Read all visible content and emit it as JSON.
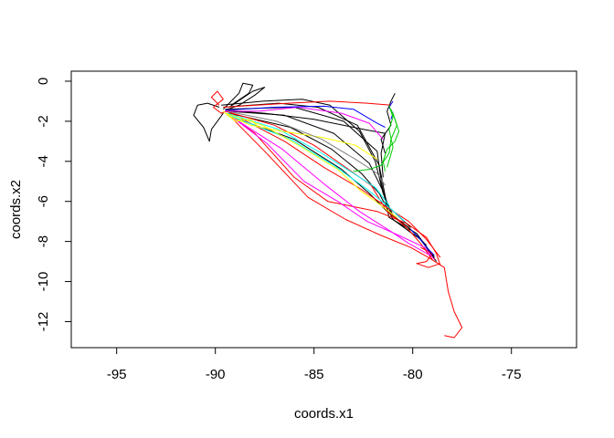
{
  "chart_data": {
    "type": "line",
    "title": "",
    "xlabel": "coords.x1",
    "ylabel": "coords.x2",
    "xlim": [
      -97.3,
      -71.7
    ],
    "ylim": [
      -13.3,
      0.5
    ],
    "x_ticks": [
      -95,
      -90,
      -85,
      -80,
      -75
    ],
    "y_ticks": [
      0,
      -2,
      -4,
      -6,
      -8,
      -10,
      -12
    ],
    "x_tick_labels": [
      "-95",
      "-90",
      "-85",
      "-80",
      "-75"
    ],
    "y_tick_labels": [
      "0",
      "-2",
      "-4",
      "-6",
      "-8",
      "-10",
      "-12"
    ],
    "grid": false,
    "legend": "none",
    "series": [
      {
        "color": "#000000",
        "points": [
          [
            -89.5,
            -1.4
          ],
          [
            -86,
            -1.3
          ],
          [
            -83.5,
            -2
          ],
          [
            -81.8,
            -3.5
          ],
          [
            -81.6,
            -5
          ],
          [
            -81.2,
            -6.8
          ],
          [
            -79.8,
            -7.6
          ],
          [
            -78.9,
            -8.8
          ]
        ]
      },
      {
        "color": "#000000",
        "points": [
          [
            -89.4,
            -1.5
          ],
          [
            -86.5,
            -1.7
          ],
          [
            -84,
            -2.6
          ],
          [
            -82.2,
            -4.1
          ],
          [
            -81.5,
            -5.5
          ],
          [
            -81,
            -6.9
          ],
          [
            -79.6,
            -7.9
          ],
          [
            -78.8,
            -9.0
          ]
        ]
      },
      {
        "color": "#000000",
        "points": [
          [
            -89.6,
            -1.3
          ],
          [
            -86.8,
            -1.1
          ],
          [
            -84.8,
            -1.3
          ],
          [
            -82.8,
            -2.2
          ],
          [
            -81.7,
            -4.2
          ],
          [
            -81.3,
            -6.2
          ],
          [
            -80.1,
            -7.3
          ]
        ]
      },
      {
        "color": "#000000",
        "points": [
          [
            -89.3,
            -1.6
          ],
          [
            -86.2,
            -2.3
          ],
          [
            -84.1,
            -3.4
          ],
          [
            -82.6,
            -4.6
          ],
          [
            -81.7,
            -5.6
          ],
          [
            -81,
            -6.9
          ],
          [
            -79.9,
            -7.7
          ]
        ]
      },
      {
        "color": "#000000",
        "points": [
          [
            -89.5,
            -1.45
          ],
          [
            -87.5,
            -1.6
          ],
          [
            -85,
            -1.9
          ],
          [
            -82.5,
            -2.4
          ],
          [
            -81.4,
            -2.6
          ],
          [
            -81.6,
            -3.6
          ],
          [
            -81.5,
            -4.8
          ]
        ]
      },
      {
        "color": "#000000",
        "points": [
          [
            -89.4,
            -1.7
          ],
          [
            -86,
            -2.9
          ],
          [
            -83.6,
            -4.4
          ],
          [
            -82.2,
            -5.6
          ],
          [
            -81.3,
            -6.5
          ],
          [
            -80.2,
            -7.3
          ],
          [
            -79.3,
            -8.2
          ]
        ]
      },
      {
        "color": "#000000",
        "points": [
          [
            -89.7,
            -1.2
          ],
          [
            -87.6,
            -1.0
          ],
          [
            -85.6,
            -0.9
          ],
          [
            -84.2,
            -1.2
          ],
          [
            -82.7,
            -2.5
          ],
          [
            -81.9,
            -4
          ],
          [
            -81.5,
            -5.6
          ],
          [
            -81,
            -6.7
          ]
        ]
      },
      {
        "color": "#000000",
        "points": [
          [
            -89.8,
            -1.3
          ],
          [
            -90.4,
            -1.1
          ],
          [
            -90.9,
            -1.2
          ],
          [
            -91.1,
            -1.7
          ],
          [
            -90.6,
            -2.3
          ],
          [
            -90.3,
            -3.0
          ],
          [
            -90.2,
            -2.4
          ],
          [
            -89.9,
            -2.0
          ],
          [
            -89.6,
            -1.6
          ]
        ]
      },
      {
        "color": "#000000",
        "points": [
          [
            -89.6,
            -1.4
          ],
          [
            -89.2,
            -1.0
          ],
          [
            -88.8,
            -0.6
          ],
          [
            -88.6,
            -0.1
          ],
          [
            -88.1,
            -0.2
          ],
          [
            -88.3,
            -0.6
          ],
          [
            -88.9,
            -1.0
          ],
          [
            -89.2,
            -1.2
          ]
        ]
      },
      {
        "color": "#000000",
        "points": [
          [
            -89.5,
            -1.45
          ],
          [
            -88.8,
            -1.2
          ],
          [
            -88.0,
            -0.7
          ],
          [
            -87.5,
            -0.3
          ],
          [
            -88.1,
            -0.5
          ],
          [
            -88.7,
            -0.9
          ],
          [
            -89.3,
            -1.3
          ]
        ]
      },
      {
        "color": "#000000",
        "points": [
          [
            -80.9,
            -0.6
          ],
          [
            -81.1,
            -1.0
          ],
          [
            -81.3,
            -1.5
          ],
          [
            -81.1,
            -2.2
          ],
          [
            -81.6,
            -2.9
          ],
          [
            -81.4,
            -3.6
          ]
        ]
      },
      {
        "color": "#ff0000",
        "points": [
          [
            -89.4,
            -1.6
          ],
          [
            -88,
            -2.6
          ],
          [
            -86,
            -4.8
          ],
          [
            -84.3,
            -6.0
          ],
          [
            -81.8,
            -6.5
          ],
          [
            -80.3,
            -7.1
          ],
          [
            -79.3,
            -7.8
          ],
          [
            -78.8,
            -8.6
          ],
          [
            -78.6,
            -9.2
          ]
        ]
      },
      {
        "color": "#ff0000",
        "points": [
          [
            -89.3,
            -1.7
          ],
          [
            -87.5,
            -3.5
          ],
          [
            -85.3,
            -5.8
          ],
          [
            -83.4,
            -6.9
          ],
          [
            -81.6,
            -7.7
          ],
          [
            -80.1,
            -8.3
          ],
          [
            -79.2,
            -8.8
          ],
          [
            -78.4,
            -9.3
          ],
          [
            -78.2,
            -10.5
          ],
          [
            -77.9,
            -11.5
          ],
          [
            -77.5,
            -12.3
          ],
          [
            -77.9,
            -12.8
          ],
          [
            -78.4,
            -12.7
          ]
        ]
      },
      {
        "color": "#ff0000",
        "points": [
          [
            -89.6,
            -1.3
          ],
          [
            -86.3,
            -1.1
          ],
          [
            -84.2,
            -1.0
          ],
          [
            -82.3,
            -1.1
          ],
          [
            -81.1,
            -1.2
          ]
        ]
      },
      {
        "color": "#ff0000",
        "points": [
          [
            -89.5,
            -1.5
          ],
          [
            -87,
            -2.2
          ],
          [
            -85,
            -3.2
          ],
          [
            -83.4,
            -4.3
          ],
          [
            -82.1,
            -5.2
          ],
          [
            -81.3,
            -6.5
          ],
          [
            -80.3,
            -7.3
          ],
          [
            -79.6,
            -8.1
          ],
          [
            -79.0,
            -8.9
          ]
        ]
      },
      {
        "color": "#ff0000",
        "points": [
          [
            -89.2,
            -1.6
          ],
          [
            -86.5,
            -3.0
          ],
          [
            -84.5,
            -4.3
          ],
          [
            -82.6,
            -5.4
          ],
          [
            -81.3,
            -6.3
          ],
          [
            -80.2,
            -7.0
          ],
          [
            -79.3,
            -7.9
          ],
          [
            -78.6,
            -8.8
          ]
        ]
      },
      {
        "color": "#ff0000",
        "points": [
          [
            -89.8,
            -1.2
          ],
          [
            -90.2,
            -0.8
          ],
          [
            -89.9,
            -0.5
          ],
          [
            -89.6,
            -0.9
          ],
          [
            -90.1,
            -1.3
          ],
          [
            -89.7,
            -1.6
          ],
          [
            -89.2,
            -1.4
          ]
        ]
      },
      {
        "color": "#ff0000",
        "points": [
          [
            -79.6,
            -8.3
          ],
          [
            -79.0,
            -8.6
          ],
          [
            -79.3,
            -9.0
          ],
          [
            -79.8,
            -9.1
          ],
          [
            -79.2,
            -9.3
          ],
          [
            -78.6,
            -9.1
          ]
        ]
      },
      {
        "color": "#ff00ff",
        "points": [
          [
            -89.4,
            -1.6
          ],
          [
            -87.4,
            -3.1
          ],
          [
            -85.5,
            -5.0
          ],
          [
            -83.8,
            -6.0
          ],
          [
            -82.3,
            -7.0
          ],
          [
            -80.7,
            -7.7
          ],
          [
            -79.4,
            -8.3
          ],
          [
            -78.9,
            -8.9
          ]
        ]
      },
      {
        "color": "#ff00ff",
        "points": [
          [
            -89.5,
            -1.5
          ],
          [
            -87.8,
            -1.5
          ],
          [
            -85.8,
            -1.3
          ],
          [
            -83.6,
            -1.6
          ],
          [
            -82.2,
            -2.1
          ],
          [
            -81.5,
            -2.9
          ]
        ]
      },
      {
        "color": "#ff00ff",
        "points": [
          [
            -89.3,
            -1.7
          ],
          [
            -86.6,
            -3.4
          ],
          [
            -84.4,
            -5.2
          ],
          [
            -82.7,
            -6.5
          ],
          [
            -81.1,
            -7.5
          ],
          [
            -80.2,
            -8.1
          ],
          [
            -79.1,
            -8.7
          ]
        ]
      },
      {
        "color": "#0000ff",
        "points": [
          [
            -89.5,
            -1.45
          ],
          [
            -87,
            -1.3
          ],
          [
            -84.5,
            -1.25
          ],
          [
            -83,
            -1.4
          ],
          [
            -81.8,
            -2.1
          ],
          [
            -81.4,
            -2.3
          ]
        ]
      },
      {
        "color": "#0000ff",
        "points": [
          [
            -81.0,
            -1.0
          ],
          [
            -81.2,
            -1.3
          ],
          [
            -81.0,
            -1.6
          ],
          [
            -81.1,
            -1.9
          ]
        ]
      },
      {
        "color": "#0000ff",
        "points": [
          [
            -80.1,
            -7.4
          ],
          [
            -79.7,
            -7.8
          ],
          [
            -79.2,
            -8.4
          ],
          [
            -78.9,
            -8.7
          ]
        ]
      },
      {
        "color": "#00cc00",
        "points": [
          [
            -81.1,
            -1.4
          ],
          [
            -80.9,
            -1.9
          ],
          [
            -80.7,
            -2.5
          ],
          [
            -80.9,
            -3.0
          ],
          [
            -81.3,
            -3.4
          ],
          [
            -81.5,
            -4.0
          ],
          [
            -81.4,
            -4.5
          ]
        ]
      },
      {
        "color": "#00cc00",
        "points": [
          [
            -81.0,
            -1.6
          ],
          [
            -80.8,
            -2.2
          ],
          [
            -81.1,
            -2.9
          ],
          [
            -81.2,
            -3.6
          ],
          [
            -81.6,
            -4.2
          ],
          [
            -82.2,
            -4.4
          ],
          [
            -83.0,
            -4.5
          ]
        ]
      },
      {
        "color": "#00cc00",
        "points": [
          [
            -81.2,
            -1.2
          ],
          [
            -81.0,
            -1.8
          ],
          [
            -81.2,
            -2.4
          ],
          [
            -81.0,
            -3.3
          ],
          [
            -81.3,
            -4.3
          ]
        ]
      },
      {
        "color": "#00ffff",
        "points": [
          [
            -89.4,
            -1.6
          ],
          [
            -86.8,
            -2.4
          ],
          [
            -84.6,
            -3.6
          ],
          [
            -83.0,
            -4.6
          ],
          [
            -81.9,
            -5.3
          ],
          [
            -81.2,
            -6.2
          ]
        ]
      },
      {
        "color": "#00ffff",
        "points": [
          [
            -89.3,
            -1.7
          ],
          [
            -86.2,
            -2.9
          ],
          [
            -84.0,
            -4.2
          ],
          [
            -82.3,
            -5.4
          ],
          [
            -81.2,
            -6.3
          ],
          [
            -80.4,
            -7.0
          ]
        ]
      },
      {
        "color": "#ffff00",
        "points": [
          [
            -89.5,
            -1.6
          ],
          [
            -87.6,
            -2.2
          ],
          [
            -85.6,
            -3.3
          ],
          [
            -83.8,
            -4.4
          ],
          [
            -82.6,
            -5.5
          ],
          [
            -81.6,
            -6.2
          ],
          [
            -80.8,
            -6.8
          ]
        ]
      },
      {
        "color": "#ffff00",
        "points": [
          [
            -89.4,
            -1.7
          ],
          [
            -88.2,
            -2.2
          ],
          [
            -86.6,
            -2.5
          ],
          [
            -84.6,
            -2.8
          ],
          [
            -82.9,
            -3.2
          ],
          [
            -81.8,
            -3.9
          ]
        ]
      },
      {
        "color": "#ffff00",
        "points": [
          [
            -89.6,
            -1.5
          ],
          [
            -89.0,
            -2.0
          ],
          [
            -88.2,
            -1.9
          ],
          [
            -87.8,
            -2.3
          ]
        ]
      },
      {
        "color": "#808080",
        "points": [
          [
            -89.4,
            -1.5
          ],
          [
            -86.9,
            -2.0
          ],
          [
            -84.6,
            -2.9
          ],
          [
            -82.9,
            -3.9
          ],
          [
            -81.8,
            -4.6
          ],
          [
            -81.4,
            -5.2
          ]
        ]
      }
    ]
  }
}
